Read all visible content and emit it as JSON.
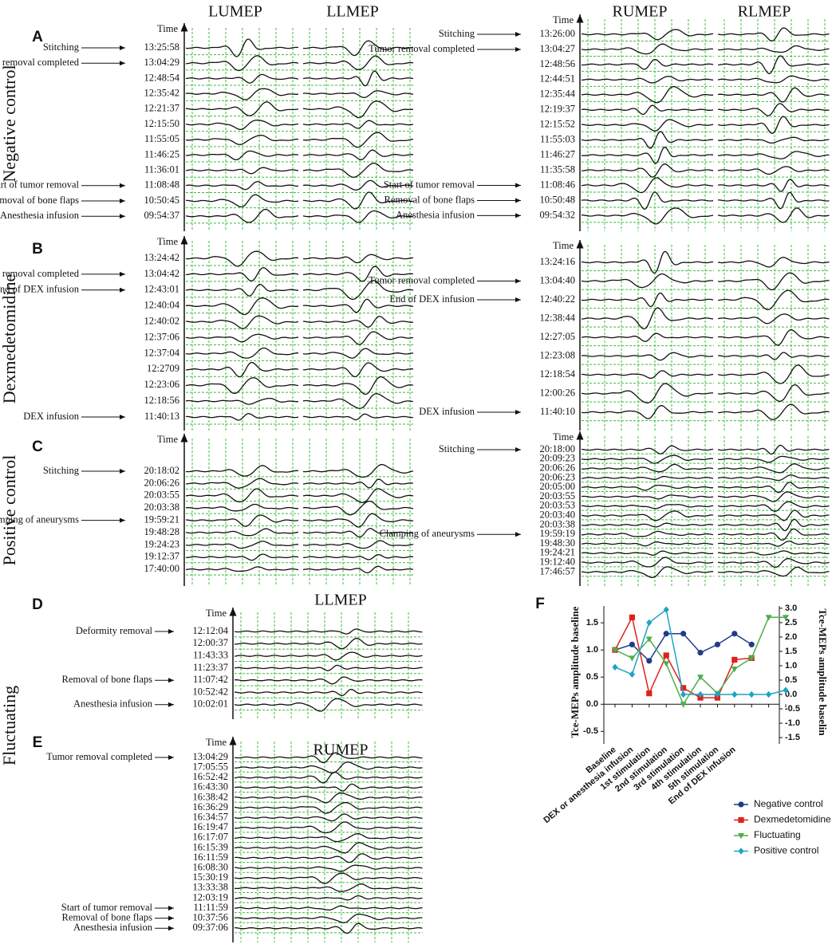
{
  "column_headers": [
    "LUMEP",
    "LLMEP",
    "RUMEP",
    "RLMEP"
  ],
  "panels": [
    {
      "letter": "A",
      "group": "Negative control",
      "blocks": [
        {
          "axis_label": "Time",
          "rows": [
            {
              "event": "Stitching",
              "time": "13:25:58"
            },
            {
              "event": "Tumor removal completed",
              "time": "13:04:29"
            },
            {
              "time": "12:48:54"
            },
            {
              "time": "12:35:42"
            },
            {
              "time": "12:21:37"
            },
            {
              "time": "12:15:50"
            },
            {
              "time": "11:55:05"
            },
            {
              "time": "11:46:25"
            },
            {
              "time": "11:36:01"
            },
            {
              "event": "Start of tumor removal",
              "time": "11:08:48"
            },
            {
              "event": "Removal of bone flaps",
              "time": "10:50:45"
            },
            {
              "event": "Anesthesia infusion",
              "time": "09:54:37"
            }
          ]
        },
        {
          "axis_label": "Time",
          "rows": [
            {
              "event": "Stitching",
              "time": "13:26:00"
            },
            {
              "event": "Tumor removal completed",
              "time": "13:04:27"
            },
            {
              "time": "12:48:56"
            },
            {
              "time": "12:44:51"
            },
            {
              "time": "12:35:44"
            },
            {
              "time": "12:19:37"
            },
            {
              "time": "12:15:52"
            },
            {
              "time": "11:55:03"
            },
            {
              "time": "11:46:27"
            },
            {
              "time": "11:35:58"
            },
            {
              "event": "Start of tumor removal",
              "time": "11:08:46"
            },
            {
              "event": "Removal of bone flaps",
              "time": "10:50:48"
            },
            {
              "event": "Anesthesia infusion",
              "time": "09:54:32"
            }
          ]
        }
      ]
    },
    {
      "letter": "B",
      "group": "Dexmedetomidine",
      "blocks": [
        {
          "axis_label": "Time",
          "rows": [
            {
              "time": "13:24:42"
            },
            {
              "event": "Tumor removal completed",
              "time": "13:04:42"
            },
            {
              "event": "End of DEX infusion",
              "time": "12:43:01"
            },
            {
              "time": "12:40:04"
            },
            {
              "time": "12:40:02"
            },
            {
              "time": "12:37:06"
            },
            {
              "time": "12:37:04"
            },
            {
              "time": "12:2709"
            },
            {
              "time": "12:23:06"
            },
            {
              "time": "12:18:56"
            },
            {
              "event": "DEX infusion",
              "time": "11:40:13"
            }
          ]
        },
        {
          "axis_label": "Time",
          "rows": [
            {
              "time": "13:24:16"
            },
            {
              "event": "Tumor removal completed",
              "time": "13:04:40"
            },
            {
              "event": "End of DEX infusion",
              "time": "12:40:22"
            },
            {
              "time": "12:38:44"
            },
            {
              "time": "12:27:05"
            },
            {
              "time": "12:23:08"
            },
            {
              "time": "12:18:54"
            },
            {
              "time": "12:00:26"
            },
            {
              "event": "DEX infusion",
              "time": "11:40:10"
            }
          ]
        }
      ]
    },
    {
      "letter": "C",
      "group": "Positive control",
      "blocks": [
        {
          "axis_label": "Time",
          "rows": [
            {
              "event": "Stitching",
              "time": "20:18:02"
            },
            {
              "time": "20:06:26"
            },
            {
              "time": "20:03:55"
            },
            {
              "time": "20:03:38"
            },
            {
              "event": "Clamping of aneurysms",
              "time": "19:59:21"
            },
            {
              "time": "19:48:28"
            },
            {
              "time": "19:24:23"
            },
            {
              "time": "19:12:37"
            },
            {
              "time": "17:40:00"
            }
          ]
        },
        {
          "axis_label": "Time",
          "rows": [
            {
              "event": "Stitching",
              "time": "20:18:00"
            },
            {
              "time": "20:09:23"
            },
            {
              "time": "20:06:26"
            },
            {
              "time": "20:06:23"
            },
            {
              "time": "20:05:00"
            },
            {
              "time": "20:03:55"
            },
            {
              "time": "20:03:53"
            },
            {
              "time": "20:03:40"
            },
            {
              "time": "20:03:38"
            },
            {
              "event": "Clamping of aneurysms",
              "time": "19:59:19"
            },
            {
              "time": "19:48:30"
            },
            {
              "time": "19:24:21"
            },
            {
              "time": "19:12:40"
            },
            {
              "time": "17:46:57"
            }
          ]
        }
      ]
    },
    {
      "letter": "D",
      "group": "Fluctuating",
      "title": "LLMEP",
      "blocks": [
        {
          "axis_label": "Time",
          "rows": [
            {
              "event": "Deformity removal",
              "time": "12:12:04"
            },
            {
              "time": "12:00:37"
            },
            {
              "time": "11:43:33"
            },
            {
              "time": "11:23:37"
            },
            {
              "event": "Removal of bone flaps",
              "time": "11:07:42"
            },
            {
              "time": "10:52:42"
            },
            {
              "event": "Anesthesia infusion",
              "time": "10:02:01"
            }
          ]
        }
      ]
    },
    {
      "letter": "E",
      "title": "RUMEP",
      "blocks": [
        {
          "axis_label": "Time",
          "rows": [
            {
              "event": "Tumor removal completed",
              "time": "13:04:29"
            },
            {
              "time": "17:05:55"
            },
            {
              "time": "16:52:42"
            },
            {
              "time": "16:43:30"
            },
            {
              "time": "16:38:42"
            },
            {
              "time": "16:36:29"
            },
            {
              "time": "16:34:57"
            },
            {
              "time": "16:19:47"
            },
            {
              "time": "16:17:07"
            },
            {
              "time": "16:15:39"
            },
            {
              "time": "16:11:59"
            },
            {
              "time": "16:08:30"
            },
            {
              "time": "15:30:19"
            },
            {
              "time": "13:33:38"
            },
            {
              "time": "12:03:19"
            },
            {
              "event": "Start of tumor removal",
              "time": "11:11:59"
            },
            {
              "event": "Removal of bone flaps",
              "time": "10:37:56"
            },
            {
              "event": "Anesthesia infusion",
              "time": "09:37:06"
            }
          ]
        }
      ]
    }
  ],
  "chart_data": {
    "type": "line",
    "letter": "F",
    "ylabel": "Tce-MEPs amplitude baseline",
    "y2label": "Tce-MEPs amplitude baselin",
    "categories": [
      "Baseline",
      "DEX or anesthesia infusion",
      "1st stimulation",
      "2nd stimulation",
      "3rd stimulation",
      "4th stimulation",
      "5th stimulation",
      "End of DEX infusion",
      null,
      null,
      null
    ],
    "ylim": [
      -0.73,
      1.81
    ],
    "yticks": [
      1.5,
      {
        "value": 1,
        "label": "1.0"
      },
      0.5,
      {
        "value": 0,
        "label": "0.0"
      },
      -0.5
    ],
    "y2lim": [
      -1.72,
      3.08
    ],
    "y2ticks": [
      {
        "value": 3,
        "label": "3.0"
      },
      2.5,
      {
        "value": 2,
        "label": "2.0"
      },
      1.5,
      {
        "value": 1,
        "label": "1.0"
      },
      0.5,
      {
        "value": 0,
        "label": "0.0"
      },
      -0.5,
      {
        "value": -1,
        "label": "-1.0"
      },
      -1.5
    ],
    "legend": "below-right",
    "series": [
      {
        "name": "Negative control",
        "color": "#1f3c88",
        "marker": "circle",
        "values": [
          1.0,
          1.1,
          0.8,
          1.3,
          1.3,
          0.95,
          1.1,
          1.3,
          1.1,
          null,
          null
        ]
      },
      {
        "name": "Dexmedetomidine",
        "color": "#e0201b",
        "marker": "square",
        "values": [
          1.0,
          1.6,
          0.2,
          0.9,
          0.3,
          0.12,
          0.12,
          0.82,
          0.85,
          null,
          null
        ]
      },
      {
        "name": "Fluctuating",
        "color": "#4cae4c",
        "marker": "triangle-down",
        "values": [
          1.0,
          0.85,
          1.2,
          0.75,
          0.0,
          0.5,
          0.2,
          0.65,
          0.85,
          1.6,
          1.6
        ]
      },
      {
        "name": "Positive control",
        "color": "#1fa3c4",
        "marker": "diamond",
        "axis": "y2",
        "values": [
          0.95,
          0.7,
          2.5,
          2.95,
          0.0,
          0.0,
          0.0,
          0.0,
          0.0,
          0.0,
          0.15
        ]
      }
    ]
  }
}
